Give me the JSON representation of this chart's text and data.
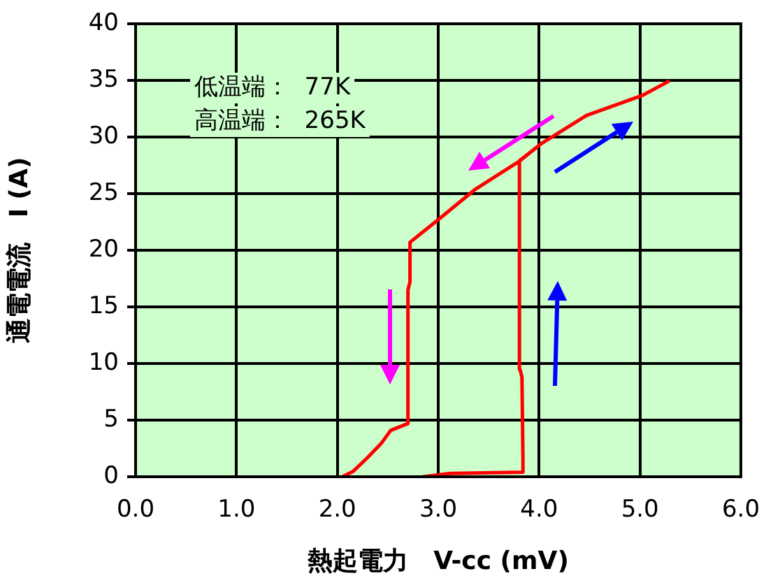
{
  "chart_data": {
    "type": "line",
    "xlabel": "熱起電力　V-cc (mV)",
    "ylabel": "通電電流　I (A)",
    "annotations": [
      "低温端：  77K",
      "高温端：  265K"
    ],
    "xlim": [
      0,
      6
    ],
    "xticks": [
      {
        "value": 0,
        "label": "0.0"
      },
      {
        "value": 1,
        "label": "1.0"
      },
      {
        "value": 2,
        "label": "2.0"
      },
      {
        "value": 3,
        "label": "3.0"
      },
      {
        "value": 4,
        "label": "4.0"
      },
      {
        "value": 5,
        "label": "5.0"
      },
      {
        "value": 6,
        "label": "6.0"
      }
    ],
    "ylim": [
      0,
      40
    ],
    "yticks": [
      0,
      5,
      10,
      15,
      20,
      25,
      30,
      35,
      40
    ],
    "grid": true,
    "marker": "none",
    "line_style": "solid",
    "series": [
      {
        "color": "#ff0000",
        "x": [
          2.85,
          3.12,
          3.84,
          3.84,
          3.83,
          3.81,
          3.8,
          3.81,
          4.02,
          4.47,
          5.03,
          5.28,
          5.03,
          4.47,
          4.02,
          3.81,
          3.37,
          3.0,
          2.72,
          2.72,
          2.7,
          2.7,
          2.53,
          2.44,
          2.3,
          2.16,
          2.05
        ],
        "values": [
          0,
          0.3,
          0.4,
          1.4,
          8.8,
          9.5,
          23.9,
          27.9,
          29.4,
          31.9,
          33.7,
          34.9,
          33.7,
          31.9,
          29.4,
          27.9,
          25.4,
          22.7,
          20.7,
          17.2,
          16.5,
          4.7,
          4.1,
          3.0,
          1.7,
          0.5,
          0
        ]
      }
    ]
  }
}
